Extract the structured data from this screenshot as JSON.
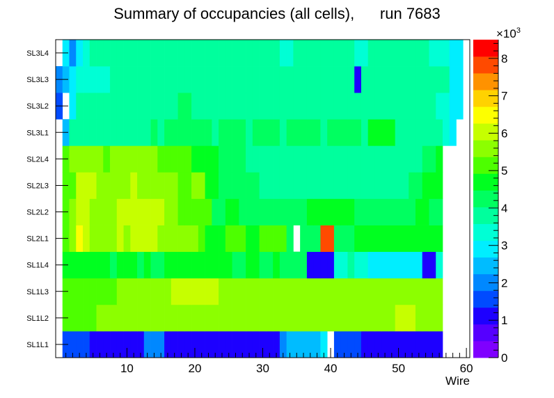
{
  "chart_data": {
    "type": "heatmap",
    "title": "Summary of occupancies (all cells),      run 7683",
    "xlabel": "Wire",
    "ylabel": "",
    "xlim": [
      0,
      60
    ],
    "x_ticks": [
      10,
      20,
      30,
      40,
      50,
      60
    ],
    "x_tick_labels": [
      "10",
      "20",
      "30",
      "40",
      "50",
      "60"
    ],
    "rows": [
      "SL1L1",
      "SL1L2",
      "SL1L3",
      "SL1L4",
      "SL2L1",
      "SL2L2",
      "SL2L3",
      "SL2L4",
      "SL3L1",
      "SL3L2",
      "SL3L3",
      "SL3L4"
    ],
    "z_range": [
      0,
      8.5
    ],
    "z_multiplier": "×10",
    "z_exponent": "3",
    "z_ticks": [
      0,
      1,
      2,
      3,
      4,
      5,
      6,
      7,
      8
    ],
    "z_tick_labels": [
      "0",
      "1",
      "2",
      "3",
      "4",
      "5",
      "6",
      "7",
      "8"
    ],
    "palette": [
      "#7f00ff",
      "#5500ff",
      "#1d00ff",
      "#004bff",
      "#0088ff",
      "#00bcff",
      "#00eeff",
      "#00ffd5",
      "#00ff9d",
      "#00ff60",
      "#00ff20",
      "#4dff00",
      "#8cff00",
      "#c6ff00",
      "#fdff00",
      "#ffd200",
      "#ff9200",
      "#ff4a00",
      "#ff0000"
    ],
    "cell_values": {
      "SL1L1": [
        [
          1,
          4,
          1.5
        ],
        [
          5,
          8,
          1.0
        ],
        [
          9,
          12,
          1.2
        ],
        [
          13,
          15,
          2.1
        ],
        [
          16,
          24,
          1.3
        ],
        [
          25,
          25,
          0.9
        ],
        [
          26,
          27,
          1.2
        ],
        [
          28,
          31,
          1.1
        ],
        [
          32,
          32,
          0.9
        ],
        [
          33,
          33,
          2.0
        ],
        [
          34,
          35,
          2.3
        ],
        [
          36,
          36,
          2.6
        ],
        [
          37,
          38,
          2.4
        ],
        [
          39,
          39,
          2.7
        ],
        [
          41,
          44,
          1.5
        ],
        [
          45,
          54,
          1.0
        ],
        [
          55,
          56,
          1.3
        ]
      ],
      "SL1L2": [
        [
          1,
          1,
          5.1
        ],
        [
          2,
          5,
          5.3
        ],
        [
          6,
          12,
          5.6
        ],
        [
          13,
          13,
          5.8
        ],
        [
          14,
          19,
          5.7
        ],
        [
          20,
          23,
          5.8
        ],
        [
          24,
          26,
          5.6
        ],
        [
          27,
          29,
          5.4
        ],
        [
          30,
          33,
          5.8
        ],
        [
          34,
          40,
          5.6
        ],
        [
          41,
          43,
          5.5
        ],
        [
          44,
          45,
          5.7
        ],
        [
          46,
          46,
          5.6
        ],
        [
          47,
          49,
          5.7
        ],
        [
          50,
          52,
          5.9
        ],
        [
          53,
          53,
          5.6
        ],
        [
          54,
          56,
          5.5
        ]
      ],
      "SL1L3": [
        [
          1,
          2,
          5.1
        ],
        [
          3,
          8,
          5.3
        ],
        [
          9,
          14,
          5.5
        ],
        [
          15,
          16,
          5.6
        ],
        [
          17,
          20,
          5.9
        ],
        [
          21,
          23,
          5.9
        ],
        [
          24,
          26,
          5.5
        ],
        [
          27,
          27,
          5.4
        ],
        [
          28,
          33,
          5.6
        ],
        [
          34,
          37,
          5.5
        ],
        [
          38,
          40,
          5.6
        ],
        [
          41,
          44,
          5.5
        ],
        [
          45,
          52,
          5.6
        ],
        [
          53,
          56,
          5.4
        ]
      ],
      "SL1L4": [
        [
          1,
          2,
          4.8
        ],
        [
          3,
          7,
          4.6
        ],
        [
          8,
          8,
          4.3
        ],
        [
          9,
          11,
          4.6
        ],
        [
          12,
          12,
          4.3
        ],
        [
          13,
          13,
          4.6
        ],
        [
          14,
          15,
          4.3
        ],
        [
          16,
          22,
          4.6
        ],
        [
          23,
          25,
          4.5
        ],
        [
          26,
          27,
          4.3
        ],
        [
          28,
          29,
          4.6
        ],
        [
          30,
          31,
          4.3
        ],
        [
          32,
          32,
          4.6
        ],
        [
          33,
          35,
          4.2
        ],
        [
          36,
          36,
          4.1
        ],
        [
          37,
          40,
          1.0
        ],
        [
          41,
          42,
          3.2
        ],
        [
          43,
          43,
          3.8
        ],
        [
          44,
          45,
          3.4
        ],
        [
          46,
          53,
          3.1
        ],
        [
          54,
          55,
          1.0
        ],
        [
          56,
          56,
          3.4
        ]
      ],
      "SL2L1": [
        [
          1,
          1,
          5.3
        ],
        [
          2,
          2,
          5.7
        ],
        [
          3,
          3,
          6.5
        ],
        [
          4,
          4,
          6.1
        ],
        [
          5,
          6,
          5.7
        ],
        [
          7,
          8,
          5.6
        ],
        [
          9,
          9,
          6.0
        ],
        [
          10,
          10,
          5.8
        ],
        [
          11,
          14,
          6.0
        ],
        [
          15,
          16,
          5.8
        ],
        [
          17,
          20,
          5.6
        ],
        [
          21,
          21,
          5.1
        ],
        [
          22,
          24,
          4.7
        ],
        [
          25,
          27,
          5.3
        ],
        [
          28,
          29,
          4.9
        ],
        [
          30,
          33,
          5.1
        ],
        [
          34,
          34,
          4.4
        ],
        [
          36,
          38,
          4.3
        ],
        [
          39,
          40,
          8.0
        ],
        [
          41,
          43,
          4.4
        ],
        [
          44,
          46,
          4.7
        ],
        [
          47,
          49,
          4.6
        ],
        [
          50,
          51,
          4.6
        ],
        [
          52,
          53,
          4.9
        ],
        [
          54,
          56,
          4.7
        ]
      ],
      "SL2L2": [
        [
          1,
          1,
          5.3
        ],
        [
          2,
          2,
          5.8
        ],
        [
          3,
          3,
          6.2
        ],
        [
          4,
          4,
          5.9
        ],
        [
          5,
          5,
          5.6
        ],
        [
          6,
          8,
          5.6
        ],
        [
          9,
          15,
          5.9
        ],
        [
          16,
          17,
          5.7
        ],
        [
          18,
          20,
          5.3
        ],
        [
          21,
          22,
          5.0
        ],
        [
          23,
          24,
          4.3
        ],
        [
          25,
          26,
          4.6
        ],
        [
          27,
          27,
          4.2
        ],
        [
          28,
          33,
          4.2
        ],
        [
          34,
          36,
          4.3
        ],
        [
          37,
          43,
          4.7
        ],
        [
          44,
          46,
          4.3
        ],
        [
          47,
          48,
          4.2
        ],
        [
          49,
          52,
          4.3
        ],
        [
          53,
          54,
          4.6
        ],
        [
          55,
          56,
          4.3
        ]
      ],
      "SL2L3": [
        [
          1,
          2,
          5.1
        ],
        [
          3,
          5,
          5.9
        ],
        [
          6,
          7,
          5.6
        ],
        [
          8,
          10,
          5.6
        ],
        [
          11,
          11,
          5.9
        ],
        [
          12,
          15,
          5.8
        ],
        [
          16,
          17,
          5.5
        ],
        [
          18,
          19,
          5.1
        ],
        [
          20,
          21,
          5.4
        ],
        [
          22,
          23,
          4.8
        ],
        [
          24,
          25,
          4.4
        ],
        [
          26,
          29,
          4.2
        ],
        [
          30,
          35,
          3.9
        ],
        [
          36,
          39,
          3.8
        ],
        [
          40,
          44,
          3.9
        ],
        [
          45,
          51,
          3.8
        ],
        [
          52,
          53,
          4.2
        ],
        [
          54,
          56,
          4.5
        ]
      ],
      "SL2L4": [
        [
          1,
          1,
          5.1
        ],
        [
          2,
          4,
          5.8
        ],
        [
          5,
          6,
          5.5
        ],
        [
          7,
          7,
          5.2
        ],
        [
          8,
          8,
          5.5
        ],
        [
          9,
          14,
          5.6
        ],
        [
          15,
          16,
          5.3
        ],
        [
          17,
          19,
          5.1
        ],
        [
          20,
          23,
          4.7
        ],
        [
          24,
          25,
          4.3
        ],
        [
          26,
          27,
          4.1
        ],
        [
          28,
          35,
          3.8
        ],
        [
          36,
          44,
          3.9
        ],
        [
          45,
          48,
          3.7
        ],
        [
          49,
          53,
          3.7
        ],
        [
          54,
          55,
          4.2
        ],
        [
          56,
          56,
          4.5
        ]
      ],
      "SL3L1": [
        [
          1,
          1,
          2.3
        ],
        [
          2,
          5,
          3.6
        ],
        [
          6,
          7,
          4.0
        ],
        [
          8,
          13,
          3.7
        ],
        [
          14,
          14,
          4.2
        ],
        [
          15,
          15,
          3.9
        ],
        [
          16,
          22,
          4.4
        ],
        [
          23,
          23,
          4.0
        ],
        [
          24,
          26,
          4.1
        ],
        [
          27,
          27,
          4.3
        ],
        [
          28,
          28,
          4.0
        ],
        [
          29,
          32,
          4.4
        ],
        [
          33,
          33,
          3.9
        ],
        [
          34,
          34,
          4.3
        ],
        [
          35,
          37,
          4.1
        ],
        [
          38,
          38,
          4.3
        ],
        [
          39,
          39,
          3.9
        ],
        [
          40,
          44,
          4.1
        ],
        [
          45,
          45,
          4.0
        ],
        [
          46,
          49,
          4.5
        ],
        [
          50,
          51,
          3.9
        ],
        [
          52,
          54,
          4.0
        ],
        [
          55,
          56,
          3.7
        ],
        [
          57,
          57,
          3.2
        ],
        [
          58,
          58,
          3.0
        ]
      ],
      "SL3L2": [
        [
          0,
          0,
          1.7
        ],
        [
          2,
          2,
          3.0
        ],
        [
          3,
          3,
          3.6
        ],
        [
          4,
          8,
          3.6
        ],
        [
          9,
          11,
          3.7
        ],
        [
          12,
          17,
          3.8
        ],
        [
          18,
          19,
          4.2
        ],
        [
          20,
          27,
          3.8
        ],
        [
          28,
          37,
          3.7
        ],
        [
          38,
          39,
          3.8
        ],
        [
          40,
          43,
          3.9
        ],
        [
          44,
          44,
          3.7
        ],
        [
          45,
          54,
          3.7
        ],
        [
          55,
          55,
          3.6
        ],
        [
          56,
          57,
          3.4
        ],
        [
          58,
          59,
          3.1
        ]
      ],
      "SL3L3": [
        [
          0,
          0,
          2.0
        ],
        [
          1,
          1,
          2.6
        ],
        [
          2,
          2,
          3.0
        ],
        [
          3,
          7,
          3.5
        ],
        [
          8,
          12,
          3.7
        ],
        [
          13,
          19,
          3.8
        ],
        [
          20,
          27,
          3.8
        ],
        [
          28,
          37,
          3.8
        ],
        [
          38,
          43,
          3.9
        ],
        [
          44,
          44,
          1.0
        ],
        [
          45,
          54,
          3.8
        ],
        [
          55,
          57,
          3.6
        ],
        [
          58,
          59,
          3.1
        ]
      ],
      "SL3L4": [
        [
          1,
          1,
          2.7
        ],
        [
          2,
          2,
          2.2
        ],
        [
          3,
          3,
          3.0
        ],
        [
          4,
          4,
          3.3
        ],
        [
          5,
          10,
          3.7
        ],
        [
          11,
          20,
          3.7
        ],
        [
          21,
          27,
          3.7
        ],
        [
          28,
          32,
          3.8
        ],
        [
          33,
          34,
          3.5
        ],
        [
          35,
          36,
          3.8
        ],
        [
          37,
          43,
          3.7
        ],
        [
          44,
          45,
          3.3
        ],
        [
          46,
          47,
          3.7
        ],
        [
          48,
          54,
          3.7
        ],
        [
          55,
          57,
          3.5
        ],
        [
          58,
          59,
          3.1
        ]
      ]
    }
  }
}
